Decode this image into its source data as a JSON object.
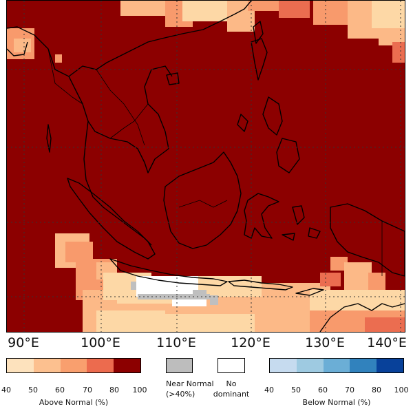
{
  "map": {
    "colors": {
      "sea": "#8c0000",
      "above_40_50": "#fdd8a6",
      "above_50_60": "#fcb987",
      "above_60_70": "#f89a6c",
      "above_70_80": "#eb6d50",
      "above_80_100": "#8c0000",
      "near_normal": "#bfbfbf",
      "no_dominant": "#ffffff",
      "coast": "#000000",
      "grid": "#333333"
    }
  },
  "lon_labels": [
    "90°E",
    "100°E",
    "110°E",
    "120°E",
    "130°E",
    "140°E"
  ],
  "legend": {
    "above": {
      "ticks": [
        "40",
        "50",
        "60",
        "70",
        "80",
        "100"
      ],
      "title": "Above Normal (%)",
      "colors": [
        "#fde2bd",
        "#fcc08f",
        "#f99f6e",
        "#ec6b4e",
        "#8c0000"
      ]
    },
    "near_normal": {
      "label_line1": "Near Normal",
      "label_line2": "(>40%)",
      "color": "#bdbdbd"
    },
    "no_dominant": {
      "label_line1": "No",
      "label_line2": "dominant",
      "color": "#ffffff"
    },
    "below": {
      "ticks": [
        "40",
        "50",
        "60",
        "70",
        "80",
        "100"
      ],
      "title": "Below Normal (%)",
      "colors": [
        "#c6dbef",
        "#9ecae1",
        "#6baed6",
        "#3182bd",
        "#08419a"
      ]
    }
  }
}
